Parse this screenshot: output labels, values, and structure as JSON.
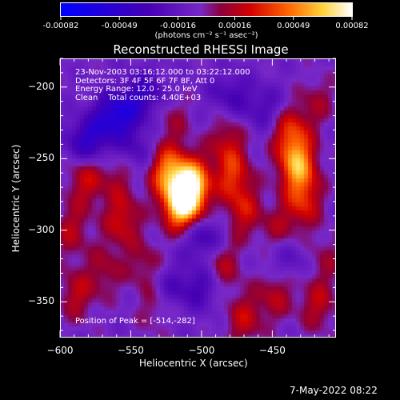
{
  "colorbar": {
    "ticks": [
      "-0.00082",
      "-0.00049",
      "-0.00016",
      "0.00016",
      "0.00049",
      "0.00082"
    ],
    "tick_values": [
      -0.00082,
      -0.00049,
      -0.00016,
      0.00016,
      0.00049,
      0.00082
    ],
    "units": "(photons cm⁻² s⁻¹ asec⁻²)"
  },
  "chart_data": {
    "type": "heatmap",
    "title": "Reconstructed RHESSI Image",
    "xlabel": "Heliocentric X (arcsec)",
    "ylabel": "Heliocentric Y (arcsec)",
    "xlim": [
      -600,
      -405
    ],
    "ylim": [
      -375,
      -180
    ],
    "x_ticks": [
      -600,
      -550,
      -500,
      -450
    ],
    "x_tick_labels": [
      "−600",
      "−550",
      "−500",
      "−450"
    ],
    "y_ticks": [
      -200,
      -250,
      -300,
      -350
    ],
    "y_tick_labels": [
      "−200",
      "−250",
      "−300",
      "−350"
    ],
    "info_lines": [
      "23-Nov-2003 03:16:12.000 to 03:22:12.000",
      "Detectors: 3F 4F 5F 6F 7F 8F, Att 0",
      "Energy Range: 12.0 - 25.0 keV",
      "Clean    Total counts: 4.40E+03"
    ],
    "peak_label": "Position of Peak = [-514,-282]",
    "sources": [
      {
        "x": -514,
        "y": -282,
        "value": 0.00082
      },
      {
        "x": -507,
        "y": -268,
        "value": 0.00075
      },
      {
        "x": -525,
        "y": -258,
        "value": 0.00052
      },
      {
        "x": -432,
        "y": -255,
        "value": 0.0006
      },
      {
        "x": -437,
        "y": -232,
        "value": 0.0004
      },
      {
        "x": -428,
        "y": -280,
        "value": 0.00035
      },
      {
        "x": -478,
        "y": -262,
        "value": 0.00036
      },
      {
        "x": -470,
        "y": -287,
        "value": 0.0003
      },
      {
        "x": -482,
        "y": -238,
        "value": 0.00025
      },
      {
        "x": -556,
        "y": -293,
        "value": 0.00032
      },
      {
        "x": -582,
        "y": -265,
        "value": 0.0003
      },
      {
        "x": -592,
        "y": -300,
        "value": 0.00024
      },
      {
        "x": -588,
        "y": -345,
        "value": 0.00026
      },
      {
        "x": -568,
        "y": -328,
        "value": 0.0002
      },
      {
        "x": -540,
        "y": -325,
        "value": 0.0002
      },
      {
        "x": -533,
        "y": -352,
        "value": 0.00018
      },
      {
        "x": -485,
        "y": -325,
        "value": 0.00026
      },
      {
        "x": -470,
        "y": -362,
        "value": 0.00028
      },
      {
        "x": -448,
        "y": -345,
        "value": 0.00025
      },
      {
        "x": -418,
        "y": -352,
        "value": 0.00026
      },
      {
        "x": -418,
        "y": -210,
        "value": 0.00018
      },
      {
        "x": -445,
        "y": -300,
        "value": 0.0002
      },
      {
        "x": -520,
        "y": -222,
        "value": 0.00016
      },
      {
        "x": -412,
        "y": -320,
        "value": 0.00016
      },
      {
        "x": -560,
        "y": -262,
        "value": 0.00018
      }
    ],
    "negatives": [
      {
        "x": -560,
        "y": -220,
        "value": -0.0005
      },
      {
        "x": -580,
        "y": -238,
        "value": -0.0004
      },
      {
        "x": -540,
        "y": -205,
        "value": -0.0003
      },
      {
        "x": -500,
        "y": -305,
        "value": -0.0003
      },
      {
        "x": -545,
        "y": -245,
        "value": -0.0002
      },
      {
        "x": -480,
        "y": -205,
        "value": -0.00022
      },
      {
        "x": -525,
        "y": -340,
        "value": -0.0002
      },
      {
        "x": -455,
        "y": -215,
        "value": -0.0002
      },
      {
        "x": -500,
        "y": -340,
        "value": -0.00024
      },
      {
        "x": -440,
        "y": -320,
        "value": -0.00018
      }
    ]
  },
  "footer": {
    "timestamp": "7-May-2022 08:22"
  }
}
